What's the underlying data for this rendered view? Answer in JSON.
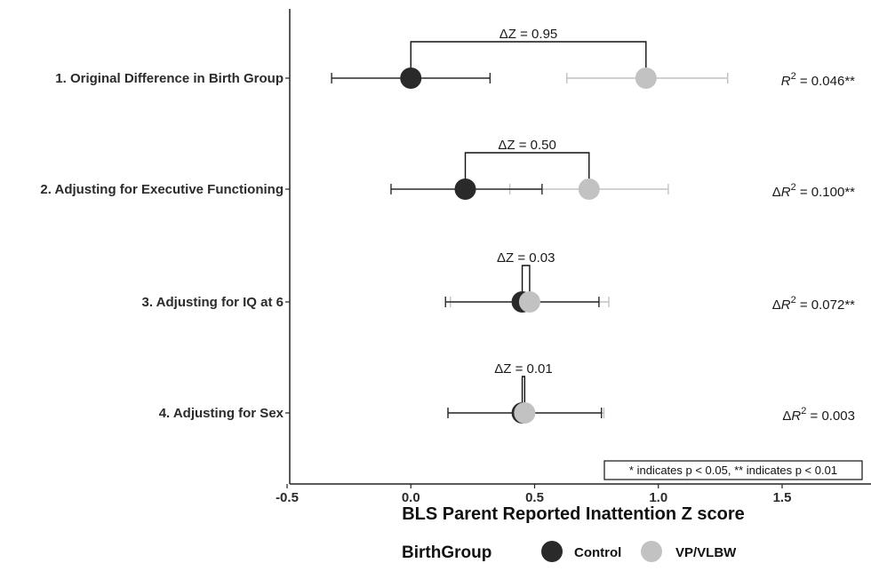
{
  "chart_data": {
    "type": "scatter",
    "title": "",
    "xlabel": "BLS Parent Reported Inattention Z score",
    "ylabel": "",
    "xlim": [
      -0.5,
      1.5
    ],
    "xticks": [
      "-0.5",
      "0.0",
      "0.5",
      "1.0",
      "1.5"
    ],
    "xtick_values": [
      -0.5,
      0.0,
      0.5,
      1.0,
      1.5
    ],
    "grid": false,
    "legend_title": "BirthGroup",
    "legend_position": "bottom",
    "rows": [
      {
        "label": "1. Original Difference in Birth Group",
        "delta_z": "ΔZ = 0.95",
        "r2_prefix": "",
        "r2_value": " = 0.046**",
        "control": {
          "estimate": 0.0,
          "ci": [
            -0.32,
            0.32
          ]
        },
        "vpvlbw": {
          "estimate": 0.95,
          "ci": [
            0.63,
            1.28
          ]
        }
      },
      {
        "label": "2. Adjusting for Executive Functioning",
        "delta_z": "ΔZ = 0.50",
        "r2_prefix": "Δ",
        "r2_value": " = 0.100**",
        "control": {
          "estimate": 0.22,
          "ci": [
            -0.08,
            0.53
          ]
        },
        "vpvlbw": {
          "estimate": 0.72,
          "ci": [
            0.4,
            1.04
          ]
        }
      },
      {
        "label": "3. Adjusting for IQ at 6",
        "delta_z": "ΔZ = 0.03",
        "r2_prefix": "Δ",
        "r2_value": " = 0.072**",
        "control": {
          "estimate": 0.45,
          "ci": [
            0.14,
            0.76
          ]
        },
        "vpvlbw": {
          "estimate": 0.48,
          "ci": [
            0.16,
            0.8
          ]
        }
      },
      {
        "label": "4. Adjusting for Sex",
        "delta_z": "ΔZ = 0.01",
        "r2_prefix": "Δ",
        "r2_value": " = 0.003",
        "control": {
          "estimate": 0.45,
          "ci": [
            0.15,
            0.77
          ]
        },
        "vpvlbw": {
          "estimate": 0.46,
          "ci": [
            0.15,
            0.78
          ]
        }
      }
    ],
    "series": [
      {
        "name": "Control",
        "color": "#2a2a2a"
      },
      {
        "name": "VP/VLBW",
        "color": "#c2c2c2"
      }
    ],
    "annotation": "* indicates p < 0.05, ** indicates p < 0.01"
  }
}
